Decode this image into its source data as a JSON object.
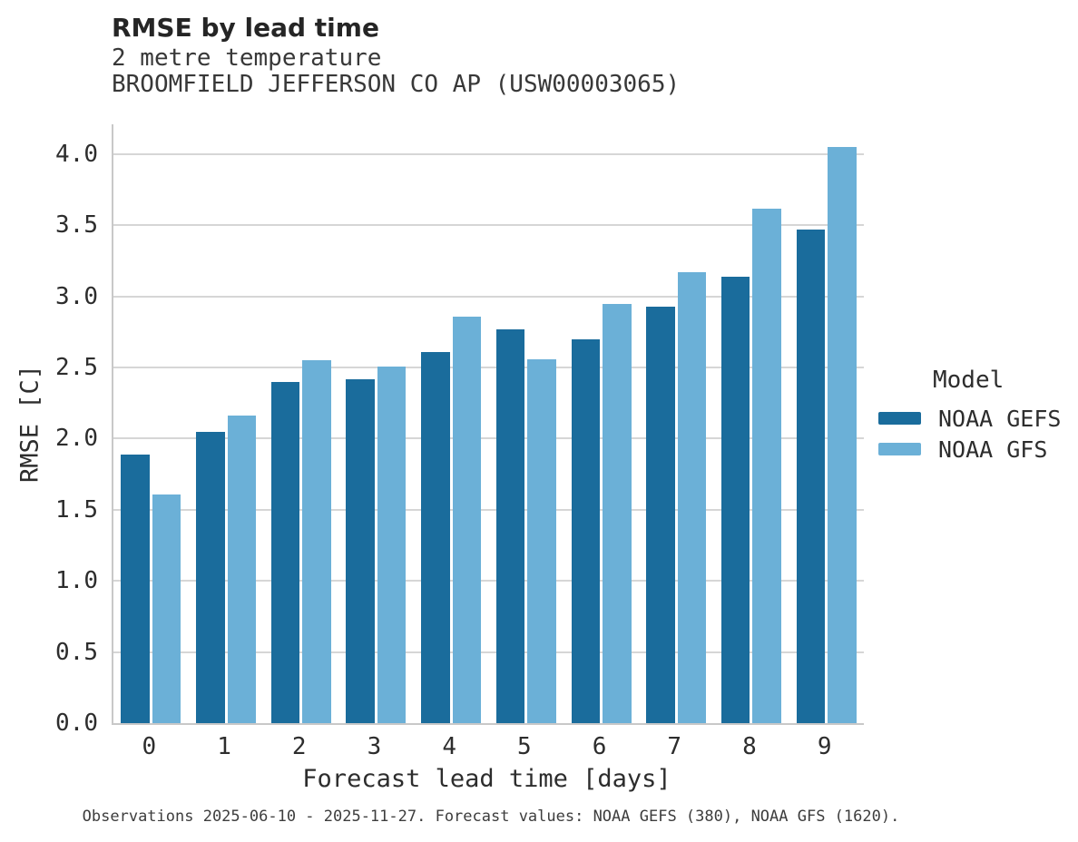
{
  "header": {
    "title": "RMSE by lead time",
    "subtitle_variable": "2 metre temperature",
    "subtitle_station": "BROOMFIELD JEFFERSON CO AP (USW00003065)"
  },
  "chart_data": {
    "type": "bar",
    "title": "RMSE by lead time",
    "subtitle": [
      "2 metre temperature",
      "BROOMFIELD JEFFERSON CO AP (USW00003065)"
    ],
    "xlabel": "Forecast lead time [days]",
    "ylabel": "RMSE [C]",
    "categories": [
      0,
      1,
      2,
      3,
      4,
      5,
      6,
      7,
      8,
      9
    ],
    "series": [
      {
        "name": "NOAA GEFS",
        "color": "#1a6c9c",
        "values": [
          1.89,
          2.05,
          2.4,
          2.42,
          2.61,
          2.77,
          2.7,
          2.93,
          3.14,
          3.47
        ]
      },
      {
        "name": "NOAA GFS",
        "color": "#6bb0d7",
        "values": [
          1.61,
          2.16,
          2.55,
          2.51,
          2.86,
          2.56,
          2.95,
          3.17,
          3.62,
          4.05
        ]
      }
    ],
    "ylim": [
      0,
      4.21
    ],
    "yticks": [
      0.0,
      0.5,
      1.0,
      1.5,
      2.0,
      2.5,
      3.0,
      3.5,
      4.0
    ],
    "grid": true,
    "legend_title": "Model",
    "legend_position": "right-center",
    "colors": {
      "grid": "#d6d6d6",
      "axis": "#c8c8c8"
    }
  },
  "footnote": "Observations 2025-06-10 - 2025-11-27. Forecast values: NOAA GEFS (380), NOAA GFS (1620)."
}
